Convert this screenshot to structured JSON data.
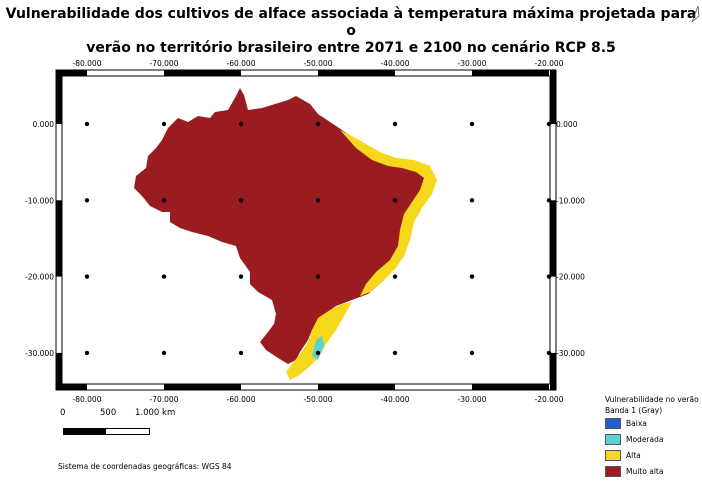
{
  "title_line1": "Vulnerabilidade dos cultivos de alface associada à temperatura máxima projetada para o",
  "title_line2": "verão no território brasileiro entre 2071 e 2100 no cenário RCP 8.5",
  "grid": {
    "lon_labels": [
      "-80.000",
      "-70.000",
      "-60.000",
      "-50.000",
      "-40.000",
      "-30.000",
      "-20.000"
    ],
    "lat_labels": [
      "0.000",
      "-10.000",
      "-20.000",
      "-30.000"
    ],
    "lon_values": [
      -80,
      -70,
      -60,
      -50,
      -40,
      -30,
      -20
    ],
    "lat_values": [
      0,
      -10,
      -20,
      -30
    ]
  },
  "legend": {
    "title": "Vulnerabilidade no verão",
    "band": "Banda 1 (Gray)",
    "items": [
      {
        "label": "Baixa",
        "color": "#2060c8"
      },
      {
        "label": "Moderada",
        "color": "#5fd0d0"
      },
      {
        "label": "Alta",
        "color": "#f5d81c"
      },
      {
        "label": "Muito alta",
        "color": "#9b1c20"
      }
    ]
  },
  "scale": {
    "labels": [
      "0",
      "500",
      "1.000 km"
    ]
  },
  "crs": "Sistema de coordenadas geográficas: WGS 84",
  "colors": {
    "muito_alta": "#9b1c20",
    "alta": "#f5d81c",
    "moderada": "#5fd0d0",
    "baixa": "#2060c8",
    "frame": "#000000"
  }
}
